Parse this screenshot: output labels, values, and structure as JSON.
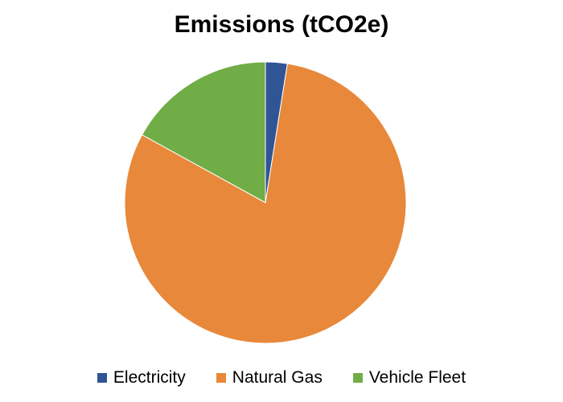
{
  "chart_data": {
    "type": "pie",
    "title": "Emissions (tCO2e)",
    "slices": [
      {
        "label": "Electricity",
        "value": 2.5,
        "color": "#2F5597"
      },
      {
        "label": "Natural Gas",
        "value": 80.5,
        "color": "#E8883A"
      },
      {
        "label": "Vehicle Fleet",
        "value": 17.0,
        "color": "#70AD47"
      }
    ],
    "start_angle_deg": 0,
    "direction": "clockwise",
    "legend_position": "bottom"
  }
}
